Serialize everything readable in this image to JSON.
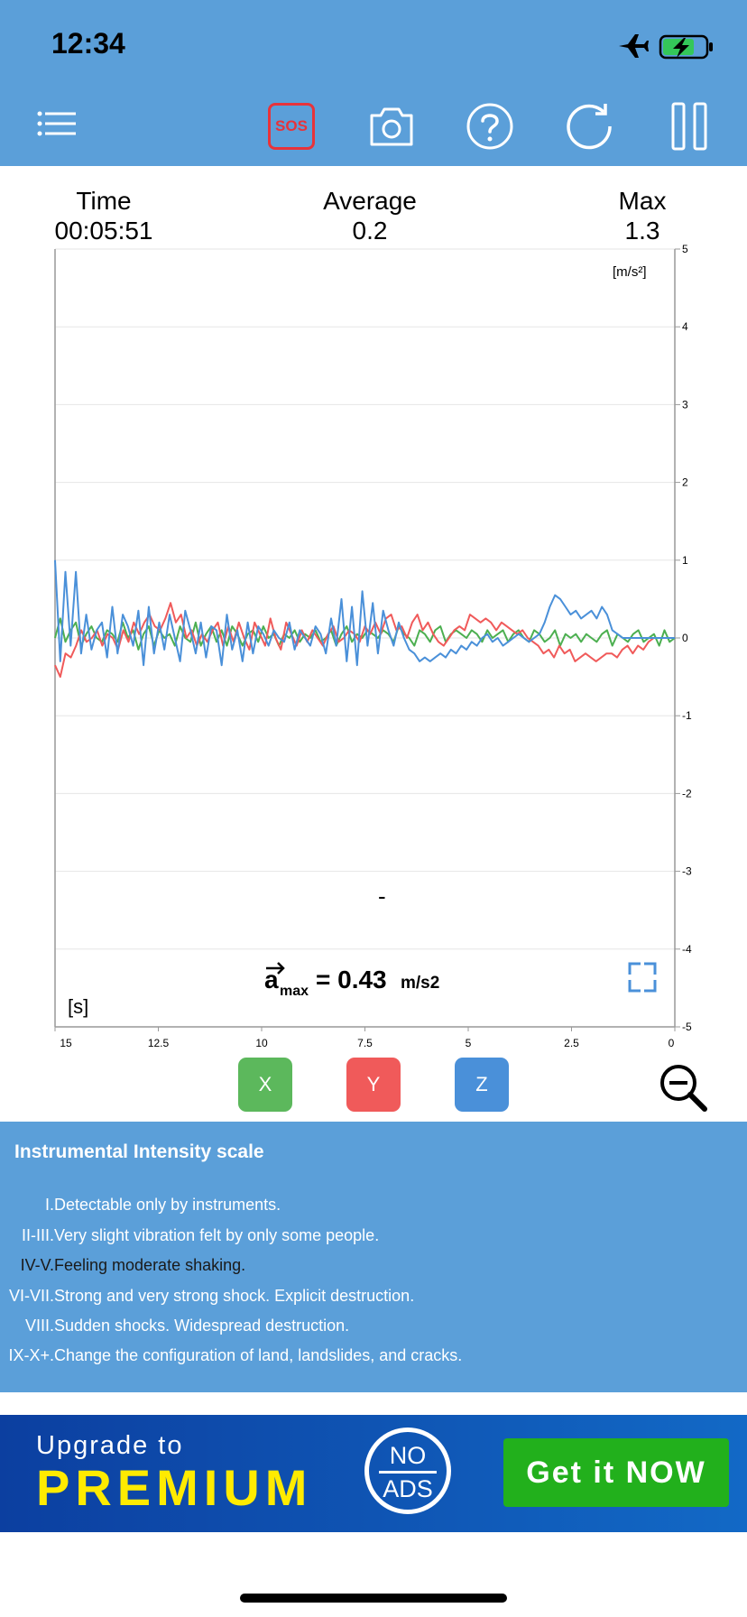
{
  "status_bar": {
    "time": "12:34"
  },
  "toolbar": {
    "sos_label": "SOS"
  },
  "stats": {
    "time_label": "Time",
    "time_value": "00:05:51",
    "average_label": "Average",
    "average_value": "0.2",
    "max_label": "Max",
    "max_value": "1.3"
  },
  "chart_data": {
    "type": "line",
    "unit_label": "[m/s²]",
    "x_unit_label": "[s]",
    "x_ticks": [
      "15",
      "12.5",
      "10",
      "7.5",
      "5",
      "2.5",
      "0"
    ],
    "y_ticks": [
      "5",
      "4",
      "3",
      "2",
      "1",
      "0",
      "-1",
      "-2",
      "-3",
      "-4",
      "-5"
    ],
    "ylim": [
      -5,
      5
    ],
    "xlim": [
      15,
      0
    ],
    "dash_text": "-",
    "amax": {
      "symbol": "a",
      "subscript": "max",
      "equals": "= 0.43",
      "unit": "m/s2"
    },
    "series": [
      {
        "name": "X",
        "color": "#4caf50",
        "values": [
          0.0,
          0.25,
          -0.05,
          0.1,
          0.2,
          -0.1,
          0.05,
          0.15,
          0.0,
          -0.05,
          0.1,
          0.05,
          -0.05,
          0.2,
          0.0,
          0.1,
          -0.15,
          0.05,
          0.15,
          -0.1,
          0.1,
          0.0,
          0.05,
          -0.1,
          0.15,
          0.0,
          -0.05,
          0.2,
          -0.1,
          0.05,
          0.15,
          -0.05,
          0.1,
          -0.1,
          0.15,
          0.05,
          -0.1,
          0.05,
          0.1,
          -0.05,
          0.15,
          0.0,
          0.05,
          -0.1,
          0.05,
          0.0,
          0.1,
          -0.05,
          0.05,
          0.0,
          0.1,
          -0.05,
          0.0,
          0.1,
          -0.1,
          0.05,
          0.15,
          -0.05,
          0.05,
          0.0,
          0.1,
          0.05,
          0.0,
          0.1,
          0.05,
          -0.05,
          0.15,
          0.05,
          0.0,
          -0.1,
          0.1,
          0.05,
          -0.05,
          0.1,
          0.15,
          -0.05,
          0.05,
          0.1,
          0.05,
          0.0,
          0.1,
          0.05,
          -0.05,
          0.1,
          0.0,
          0.05,
          0.1,
          -0.05,
          0.05,
          0.1,
          0.0,
          -0.05,
          0.1,
          0.05,
          -0.05,
          0.0,
          0.1,
          -0.1,
          0.05,
          0.0,
          0.05,
          -0.05,
          0.05,
          0.0,
          -0.05,
          0.05,
          0.1,
          -0.1,
          0.05,
          0.0,
          -0.05,
          0.05,
          0.1,
          -0.05,
          0.0,
          0.05,
          -0.1,
          0.1,
          -0.05,
          0.0
        ]
      },
      {
        "name": "Y",
        "color": "#f05a5a",
        "values": [
          -0.35,
          -0.5,
          -0.2,
          -0.25,
          -0.1,
          0.1,
          -0.05,
          0.0,
          0.1,
          -0.1,
          0.05,
          0.0,
          -0.15,
          0.1,
          -0.05,
          0.2,
          0.05,
          0.2,
          0.3,
          0.15,
          0.1,
          0.25,
          0.45,
          0.2,
          0.3,
          0.0,
          0.1,
          -0.1,
          0.05,
          -0.05,
          0.1,
          0.2,
          -0.1,
          0.15,
          -0.05,
          0.2,
          0.0,
          -0.15,
          0.2,
          0.05,
          -0.1,
          0.25,
          0.0,
          -0.15,
          0.2,
          0.05,
          -0.1,
          0.1,
          -0.05,
          0.1,
          0.0,
          -0.1,
          0.05,
          0.15,
          -0.05,
          0.0,
          0.1,
          0.05,
          -0.05,
          0.15,
          0.05,
          0.2,
          0.05,
          0.25,
          0.3,
          0.1,
          0.15,
          0.0,
          0.2,
          0.3,
          0.1,
          0.2,
          0.05,
          -0.05,
          -0.1,
          0.0,
          0.1,
          0.15,
          0.1,
          0.3,
          0.25,
          0.2,
          0.25,
          0.2,
          0.1,
          0.2,
          0.15,
          0.1,
          0.05,
          0.1,
          0.0,
          -0.05,
          -0.1,
          -0.2,
          -0.15,
          -0.25,
          -0.1,
          -0.2,
          -0.15,
          -0.3,
          -0.25,
          -0.2,
          -0.25,
          -0.3,
          -0.25,
          -0.2,
          -0.2,
          -0.25,
          -0.15,
          -0.1,
          -0.2,
          -0.1,
          -0.15,
          -0.05,
          0.0,
          0.0,
          0.0,
          0.0,
          0.0
        ]
      },
      {
        "name": "Z",
        "color": "#4a90d9",
        "values": [
          1.0,
          -0.3,
          0.85,
          -0.1,
          0.85,
          -0.2,
          0.3,
          -0.15,
          0.1,
          0.2,
          -0.25,
          0.4,
          -0.2,
          0.3,
          0.15,
          -0.1,
          0.35,
          -0.35,
          0.4,
          -0.2,
          0.2,
          -0.15,
          0.3,
          0.0,
          -0.3,
          0.35,
          0.1,
          -0.2,
          0.2,
          -0.25,
          0.15,
          0.1,
          -0.35,
          0.3,
          -0.15,
          0.1,
          -0.3,
          0.2,
          -0.2,
          0.15,
          0.05,
          -0.1,
          0.1,
          0.0,
          -0.05,
          0.2,
          -0.15,
          0.1,
          0.0,
          -0.1,
          0.15,
          0.05,
          -0.2,
          0.25,
          -0.1,
          0.5,
          -0.3,
          0.4,
          -0.35,
          0.6,
          -0.1,
          0.45,
          -0.2,
          0.35,
          0.1,
          -0.1,
          0.2,
          0.0,
          -0.15,
          -0.2,
          -0.3,
          -0.25,
          -0.3,
          -0.25,
          -0.2,
          -0.25,
          -0.15,
          -0.2,
          -0.1,
          -0.15,
          -0.05,
          -0.1,
          0.0,
          0.05,
          -0.05,
          0.0,
          -0.1,
          -0.05,
          0.0,
          0.05,
          0.0,
          -0.05,
          0.0,
          0.05,
          0.2,
          0.4,
          0.55,
          0.5,
          0.4,
          0.3,
          0.35,
          0.25,
          0.3,
          0.35,
          0.25,
          0.4,
          0.3,
          0.1,
          0.05,
          0.0,
          0.0,
          0.0,
          0.0,
          0.0,
          0.0,
          0.0,
          0.0,
          0.0,
          0.0,
          0.0
        ]
      }
    ]
  },
  "axis_buttons": {
    "x": "X",
    "y": "Y",
    "z": "Z"
  },
  "intensity": {
    "title": "Instrumental Intensity scale",
    "rows": [
      {
        "level": "I.",
        "text": "Detectable only by instruments."
      },
      {
        "level": "II-III.",
        "text": "Very slight vibration felt by only some people."
      },
      {
        "level": "IV-V.",
        "text": "Feeling moderate shaking."
      },
      {
        "level": "VI-VII.",
        "text": "Strong and very strong shock. Explicit destruction."
      },
      {
        "level": "VIII.",
        "text": "Sudden shocks. Widespread destruction."
      },
      {
        "level": "IX-X+.",
        "text": "Change the configuration of land, landslides, and cracks."
      }
    ]
  },
  "banner": {
    "upgrade_to": "Upgrade to",
    "premium": "PREMIUM",
    "no": "NO",
    "ads": "ADS",
    "cta": "Get it NOW"
  }
}
